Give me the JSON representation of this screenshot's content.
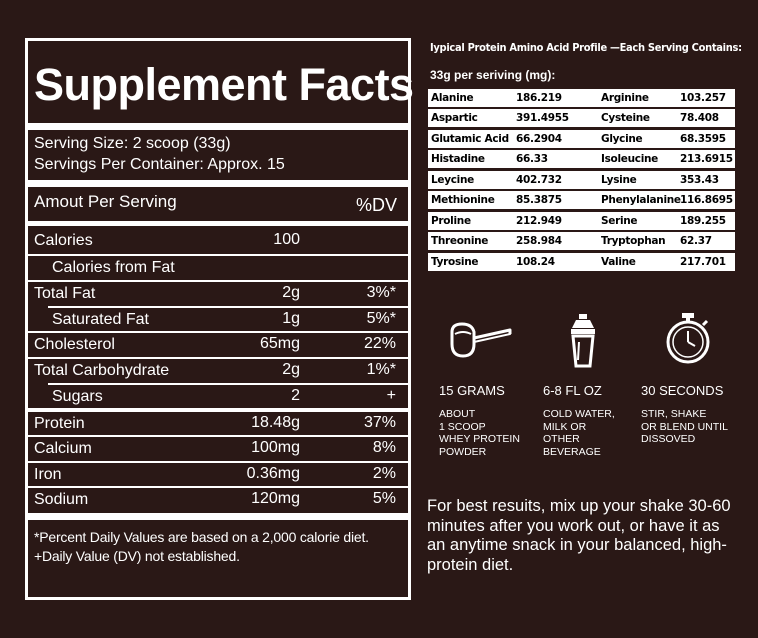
{
  "facts": {
    "title": "Supplement Facts",
    "serving_size": "Serving Size: 2 scoop (33g)",
    "servings_per_container": "Servings Per Container: Approx. 15",
    "amount_per_serving": "Amout Per Serving",
    "dv_header": "%DV",
    "rows": [
      {
        "name": "Calories",
        "amount": "100",
        "dv": ""
      },
      {
        "name": "Calories from Fat",
        "amount": "",
        "dv": ""
      },
      {
        "name": "Total Fat",
        "amount": "2g",
        "dv": "3%*"
      },
      {
        "name": "Saturated Fat",
        "amount": "1g",
        "dv": "5%*"
      },
      {
        "name": "Cholesterol",
        "amount": "65mg",
        "dv": "22%"
      },
      {
        "name": "Total Carbohydrate",
        "amount": "2g",
        "dv": "1%*"
      },
      {
        "name": "Sugars",
        "amount": "2",
        "dv": "+"
      },
      {
        "name": "Protein",
        "amount": "18.48g",
        "dv": "37%"
      },
      {
        "name": "Calcium",
        "amount": "100mg",
        "dv": "8%"
      },
      {
        "name": "Iron",
        "amount": "0.36mg",
        "dv": "2%"
      },
      {
        "name": "Sodium",
        "amount": "120mg",
        "dv": "5%"
      }
    ],
    "footnote1": "*Percent Daily Values are based on a 2,000 calorie diet.",
    "footnote2": "+Daily Value (DV) not established."
  },
  "amino": {
    "title": "Iypical Protein Amino Acid Profile —Each Serving Contains:",
    "subtitle": "33g per seriving (mg):",
    "rows": [
      {
        "a": "Alanine",
        "av": "186.219",
        "b": "Arginine",
        "bv": "103.257"
      },
      {
        "a": "Aspartic",
        "av": "391.4955",
        "b": "Cysteine",
        "bv": "78.408"
      },
      {
        "a": "Glutamic Acid",
        "av": "66.2904",
        "b": "Glycine",
        "bv": "68.3595"
      },
      {
        "a": "Histadine",
        "av": "66.33",
        "b": "Isoleucine",
        "bv": "213.6915"
      },
      {
        "a": "Leycine",
        "av": "402.732",
        "b": "Lysine",
        "bv": "353.43"
      },
      {
        "a": "Methionine",
        "av": "85.3875",
        "b": "Phenylalanine",
        "bv": "116.8695"
      },
      {
        "a": "Proline",
        "av": "212.949",
        "b": "Serine",
        "bv": "189.255"
      },
      {
        "a": "Threonine",
        "av": "258.984",
        "b": "Tryptophan",
        "bv": "62.37"
      },
      {
        "a": "Tyrosine",
        "av": "108.24",
        "b": "Valine",
        "bv": "217.701"
      }
    ]
  },
  "steps": [
    {
      "icon": "scoop-icon",
      "title": "15 GRAMS",
      "desc": "ABOUT\n1 SCOOP\nWHEY PROTEIN\nPOWDER"
    },
    {
      "icon": "shaker-icon",
      "title": "6-8 FL OZ",
      "desc": "COLD WATER,\nMILK OR\nOTHER\nBEVERAGE"
    },
    {
      "icon": "stopwatch-icon",
      "title": "30 SECONDS",
      "desc": "STIR, SHAKE\nOR BLEND UNTIL\nDISSOVED"
    }
  ],
  "instructions": "For best resuits, mix up your shake 30-60 minutes after you work out, or have it as an anytime snack in your balanced, high-protein diet.",
  "colors": {
    "background": "#2a1816",
    "foreground": "#ffffff"
  }
}
